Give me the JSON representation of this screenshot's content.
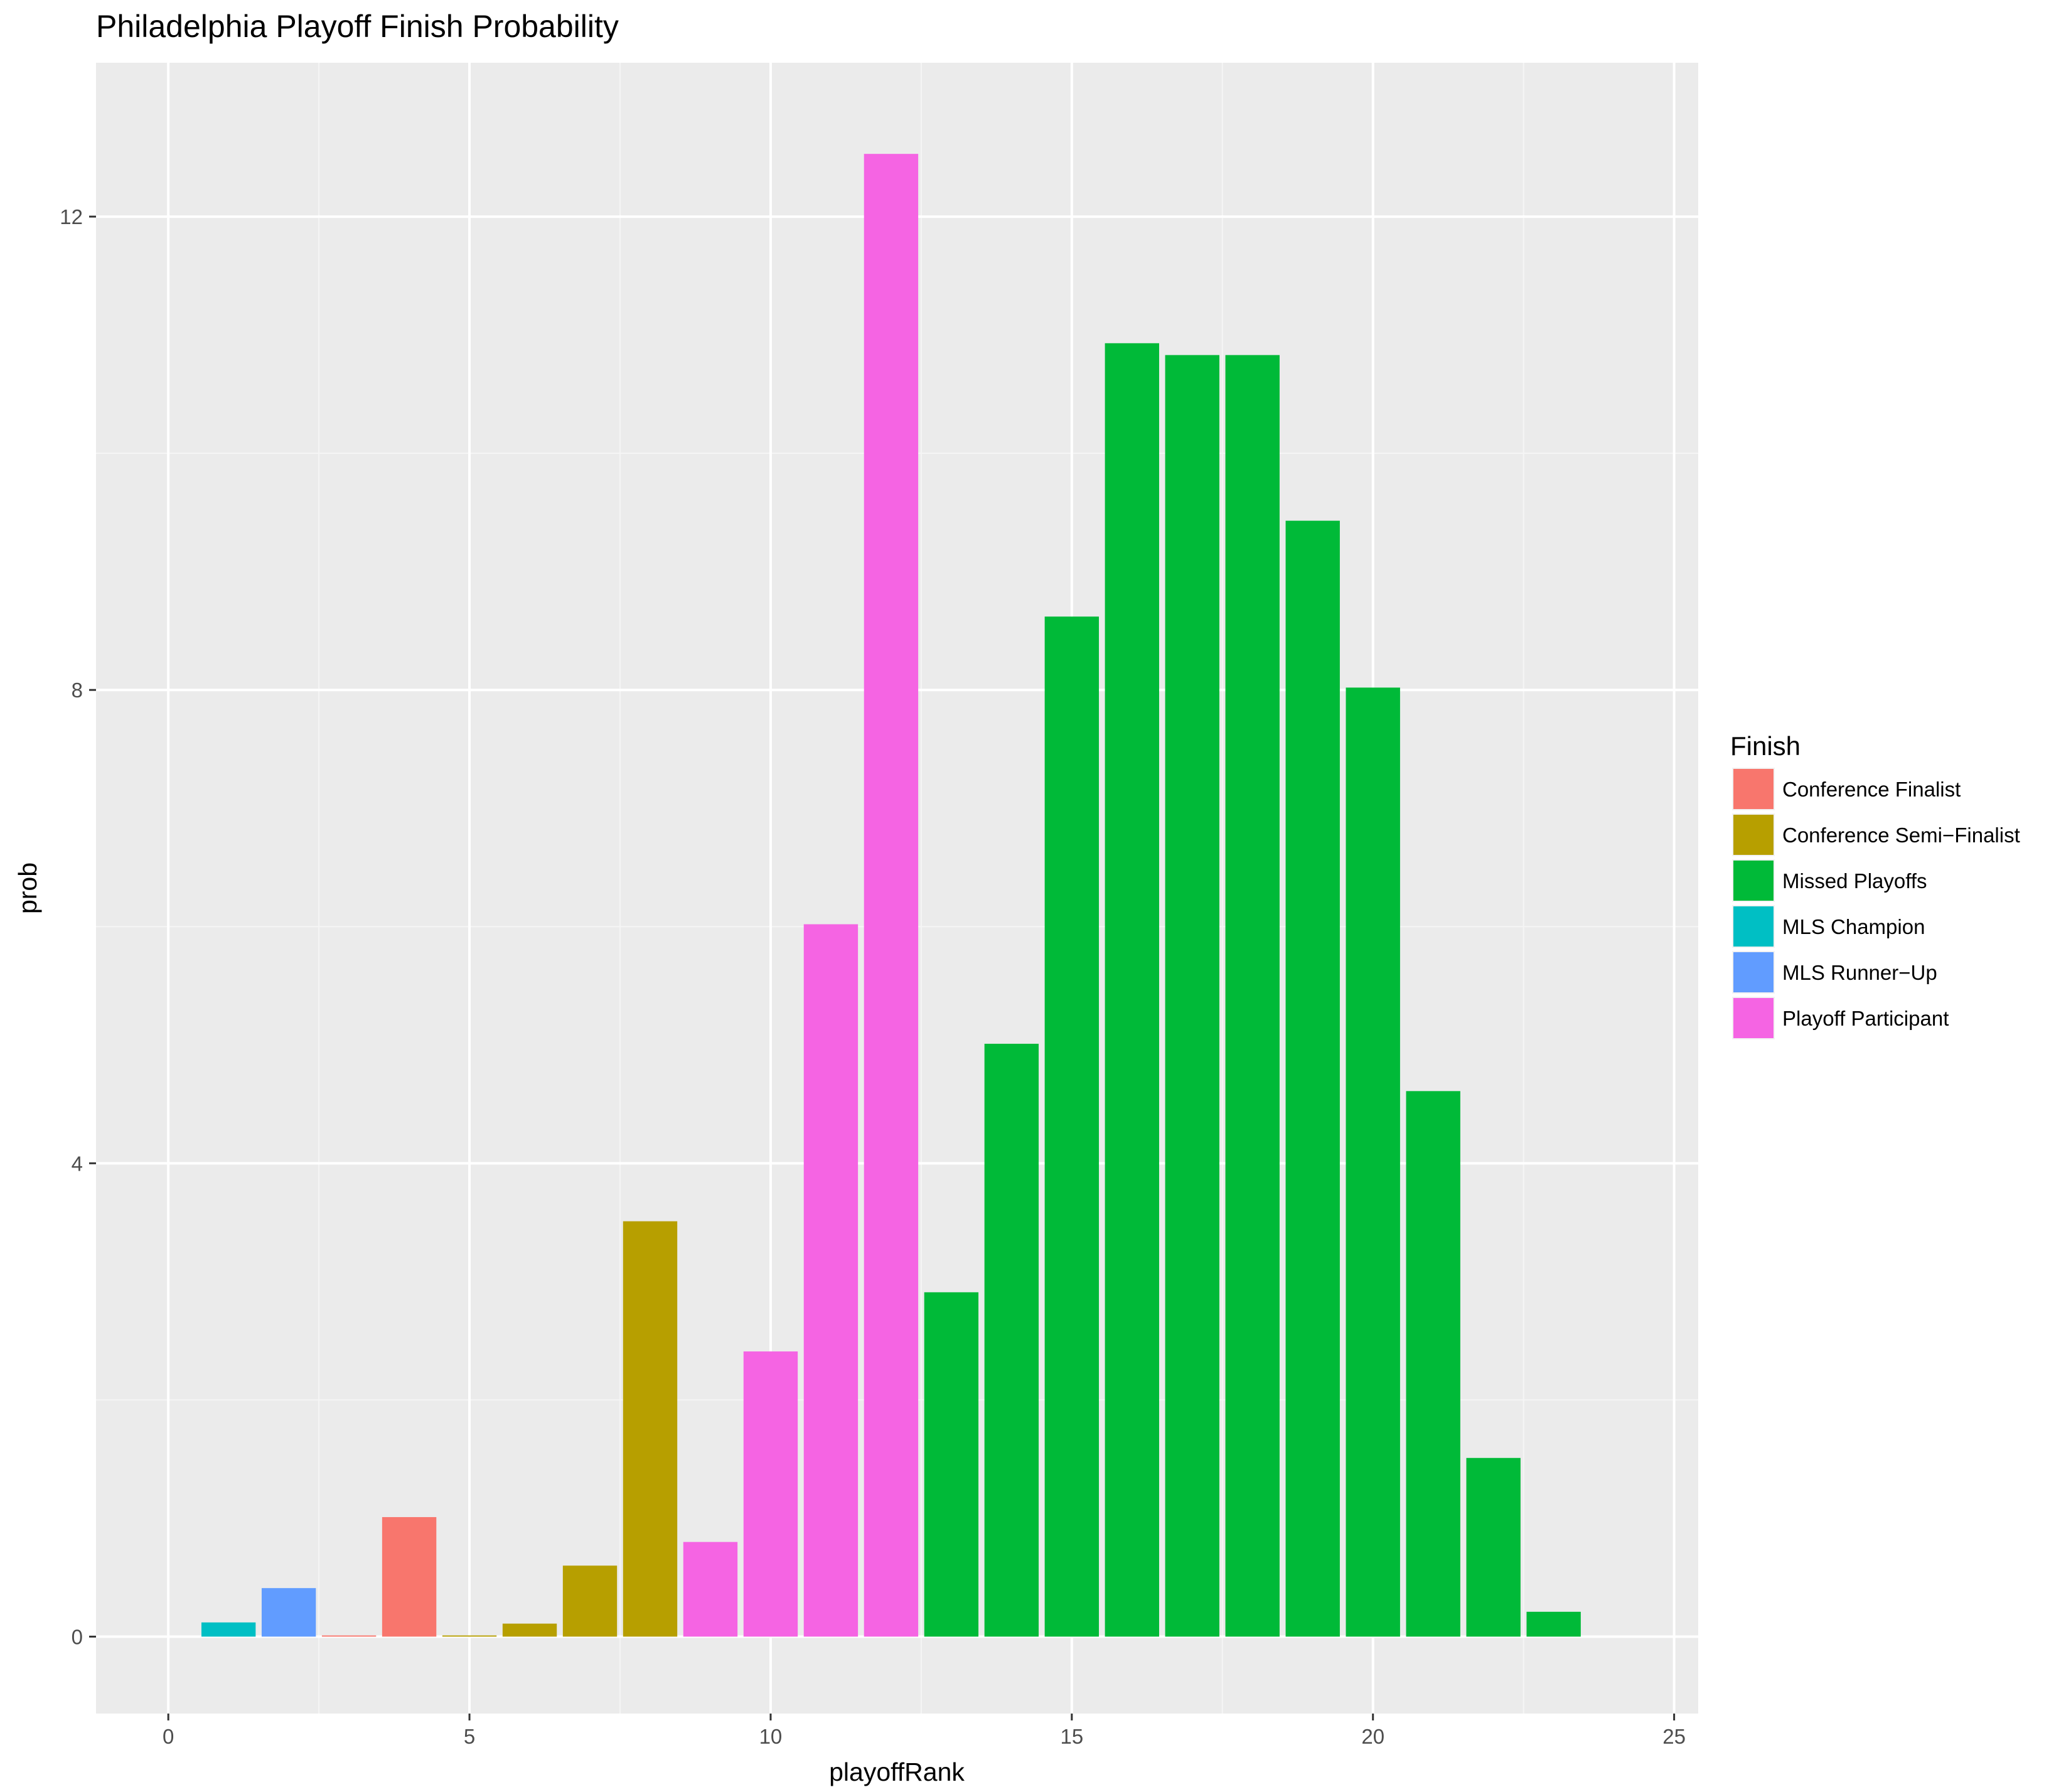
{
  "chart_data": {
    "type": "bar",
    "title": "Philadelphia Playoff Finish Probability",
    "xlabel": "playoffRank",
    "ylabel": "prob",
    "xlim": [
      -1.2,
      25.4
    ],
    "ylim": [
      -0.65,
      13.3
    ],
    "x_ticks": [
      0,
      5,
      10,
      15,
      20,
      25
    ],
    "x_tick_labels": [
      "0",
      "5",
      "10",
      "15",
      "20",
      "25"
    ],
    "y_ticks": [
      0,
      4,
      8,
      12
    ],
    "y_tick_labels": [
      "0",
      "4",
      "8",
      "12"
    ],
    "grid": true,
    "legend": {
      "title": "Finish",
      "position": "right",
      "entries": [
        {
          "label": "Conference Finalist",
          "color": "#F8766D"
        },
        {
          "label": "Conference Semi−Finalist",
          "color": "#B79F00"
        },
        {
          "label": "Missed Playoffs",
          "color": "#00BA38"
        },
        {
          "label": "MLS Champion",
          "color": "#00BFC4"
        },
        {
          "label": "MLS Runner−Up",
          "color": "#619CFF"
        },
        {
          "label": "Playoff Participant",
          "color": "#F564E3"
        }
      ]
    },
    "x": [
      1,
      2,
      3,
      4,
      5,
      6,
      7,
      8,
      9,
      10,
      11,
      12,
      13,
      14,
      15,
      16,
      17,
      18,
      19,
      20,
      21,
      22,
      23
    ],
    "values": [
      0.12,
      0.41,
      0.01,
      1.01,
      0.01,
      0.11,
      0.6,
      3.51,
      0.8,
      2.41,
      6.02,
      12.53,
      2.91,
      5.01,
      8.62,
      10.93,
      10.83,
      10.83,
      9.43,
      8.02,
      4.61,
      1.51,
      0.21
    ],
    "finish": [
      "MLS Champion",
      "MLS Runner−Up",
      "Conference Finalist",
      "Conference Finalist",
      "Conference Semi−Finalist",
      "Conference Semi−Finalist",
      "Conference Semi−Finalist",
      "Conference Semi−Finalist",
      "Playoff Participant",
      "Playoff Participant",
      "Playoff Participant",
      "Playoff Participant",
      "Missed Playoffs",
      "Missed Playoffs",
      "Missed Playoffs",
      "Missed Playoffs",
      "Missed Playoffs",
      "Missed Playoffs",
      "Missed Playoffs",
      "Missed Playoffs",
      "Missed Playoffs",
      "Missed Playoffs",
      "Missed Playoffs"
    ],
    "colors": {
      "panel_background": "#EBEBEB",
      "grid_major": "#FFFFFF",
      "grid_minor": "#F5F5F5",
      "text": "#000000",
      "tick_text": "#4D4D4D",
      "tick_mark": "#333333"
    }
  }
}
